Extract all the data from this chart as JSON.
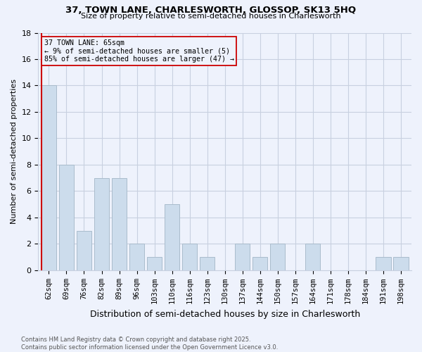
{
  "title1": "37, TOWN LANE, CHARLESWORTH, GLOSSOP, SK13 5HQ",
  "title2": "Size of property relative to semi-detached houses in Charlesworth",
  "xlabel": "Distribution of semi-detached houses by size in Charlesworth",
  "ylabel": "Number of semi-detached properties",
  "categories": [
    "62sqm",
    "69sqm",
    "76sqm",
    "82sqm",
    "89sqm",
    "96sqm",
    "103sqm",
    "110sqm",
    "116sqm",
    "123sqm",
    "130sqm",
    "137sqm",
    "144sqm",
    "150sqm",
    "157sqm",
    "164sqm",
    "171sqm",
    "178sqm",
    "184sqm",
    "191sqm",
    "198sqm"
  ],
  "values": [
    14,
    8,
    3,
    7,
    7,
    2,
    1,
    5,
    2,
    1,
    0,
    2,
    1,
    2,
    0,
    2,
    0,
    0,
    0,
    1,
    1
  ],
  "bar_color": "#ccdcec",
  "bar_edge_color": "#aabccc",
  "subject_label": "37 TOWN LANE: 65sqm",
  "annotation_line1": "← 9% of semi-detached houses are smaller (5)",
  "annotation_line2": "85% of semi-detached houses are larger (47) →",
  "subject_line_color": "#cc0000",
  "annotation_box_edge": "#cc0000",
  "ylim": [
    0,
    18
  ],
  "yticks": [
    0,
    2,
    4,
    6,
    8,
    10,
    12,
    14,
    16,
    18
  ],
  "footer1": "Contains HM Land Registry data © Crown copyright and database right 2025.",
  "footer2": "Contains public sector information licensed under the Open Government Licence v3.0.",
  "bg_color": "#eef2fc",
  "grid_color": "#c8d0e0"
}
